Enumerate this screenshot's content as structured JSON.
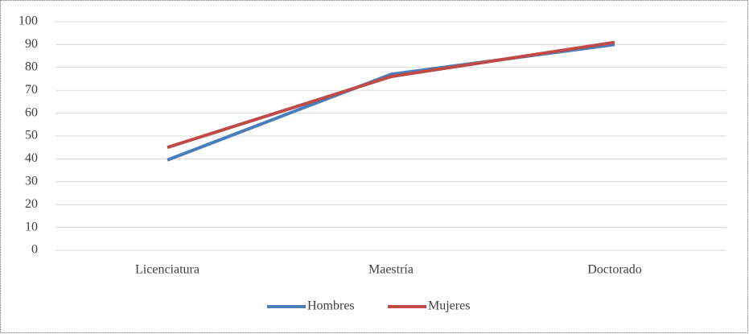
{
  "chart_data": {
    "type": "line",
    "categories": [
      "Licenciatura",
      "Maestría",
      "Doctorado"
    ],
    "series": [
      {
        "name": "Hombres",
        "color": "#4a7ebb",
        "values": [
          39.5,
          77,
          90
        ]
      },
      {
        "name": "Mujeres",
        "color": "#be4b48",
        "values": [
          45,
          76,
          91
        ]
      }
    ],
    "ylim": [
      0,
      100
    ],
    "yticks": [
      0,
      10,
      20,
      30,
      40,
      50,
      60,
      70,
      80,
      90,
      100
    ],
    "grid": true,
    "legend": "bottom"
  }
}
